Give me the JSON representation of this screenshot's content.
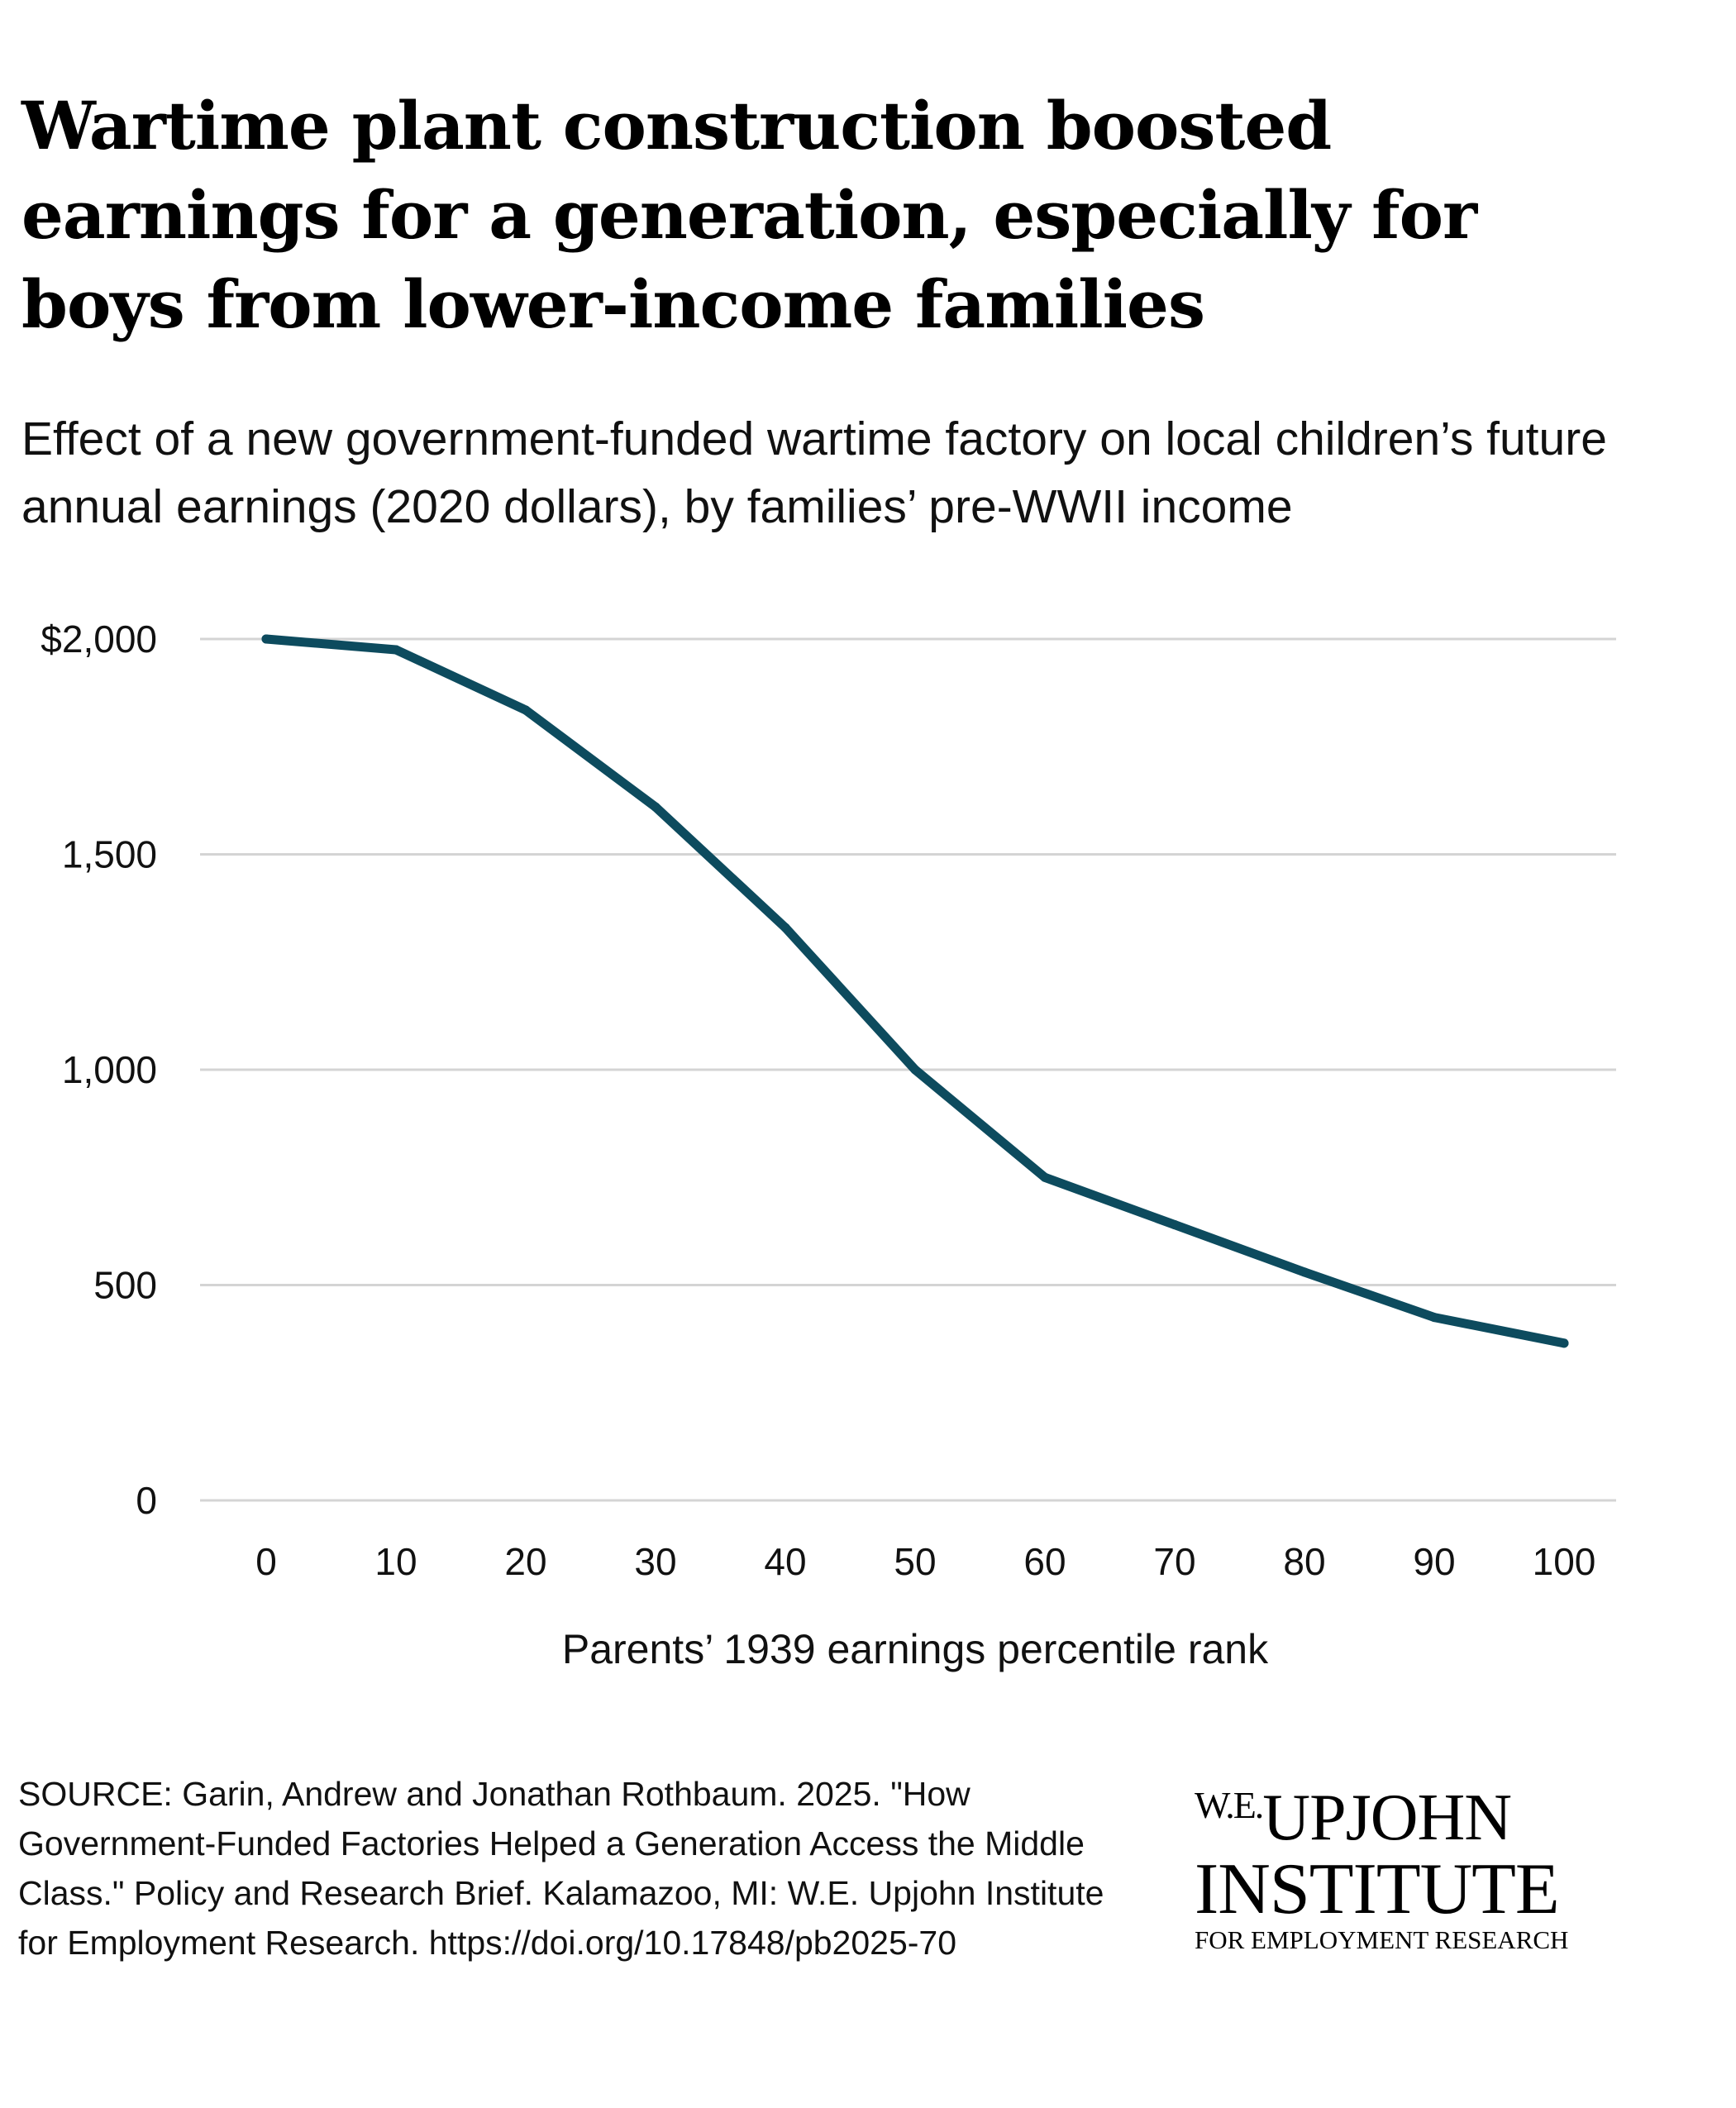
{
  "title": "Wartime plant construction boosted earnings for a generation, especially for boys from lower-income families",
  "subtitle": "Effect of a new government-funded wartime factory on local children’s future annual earnings (2020 dollars), by families’ pre-WWII income",
  "source": "SOURCE: Garin, Andrew and Jonathan Rothbaum. 2025. \"How Government-Funded Factories Helped a Generation Access the Middle Class.\" Policy and Research Brief. Kalamazoo, MI: W.E. Upjohn Institute for Employment Research. https://doi.org/10.17848/pb2025-70",
  "logo": {
    "we": "W.E.",
    "name": "UPJOHN",
    "institute": "INSTITUTE",
    "sub": "FOR EMPLOYMENT RESEARCH"
  },
  "colors": {
    "line": "#0d4b5e",
    "grid": "#d4d4d4"
  },
  "chart_data": {
    "type": "line",
    "xlabel": "Parents’ 1939 earnings percentile rank",
    "ylabel": "",
    "xlim": [
      0,
      100
    ],
    "ylim": [
      0,
      2000
    ],
    "grid": "horizontal",
    "x": [
      0,
      10,
      20,
      30,
      40,
      50,
      60,
      70,
      80,
      90,
      100
    ],
    "y": [
      2000,
      1975,
      1835,
      1610,
      1330,
      1000,
      750,
      640,
      530,
      425,
      365
    ],
    "y_ticks": [
      {
        "value": 0,
        "label": "0"
      },
      {
        "value": 500,
        "label": "500"
      },
      {
        "value": 1000,
        "label": "1,000"
      },
      {
        "value": 1500,
        "label": "1,500"
      },
      {
        "value": 2000,
        "label": "$2,000"
      }
    ],
    "x_ticks": [
      {
        "value": 0,
        "label": "0"
      },
      {
        "value": 10,
        "label": "10"
      },
      {
        "value": 20,
        "label": "20"
      },
      {
        "value": 30,
        "label": "30"
      },
      {
        "value": 40,
        "label": "40"
      },
      {
        "value": 50,
        "label": "50"
      },
      {
        "value": 60,
        "label": "60"
      },
      {
        "value": 70,
        "label": "70"
      },
      {
        "value": 80,
        "label": "80"
      },
      {
        "value": 90,
        "label": "90"
      },
      {
        "value": 100,
        "label": "100"
      }
    ]
  }
}
